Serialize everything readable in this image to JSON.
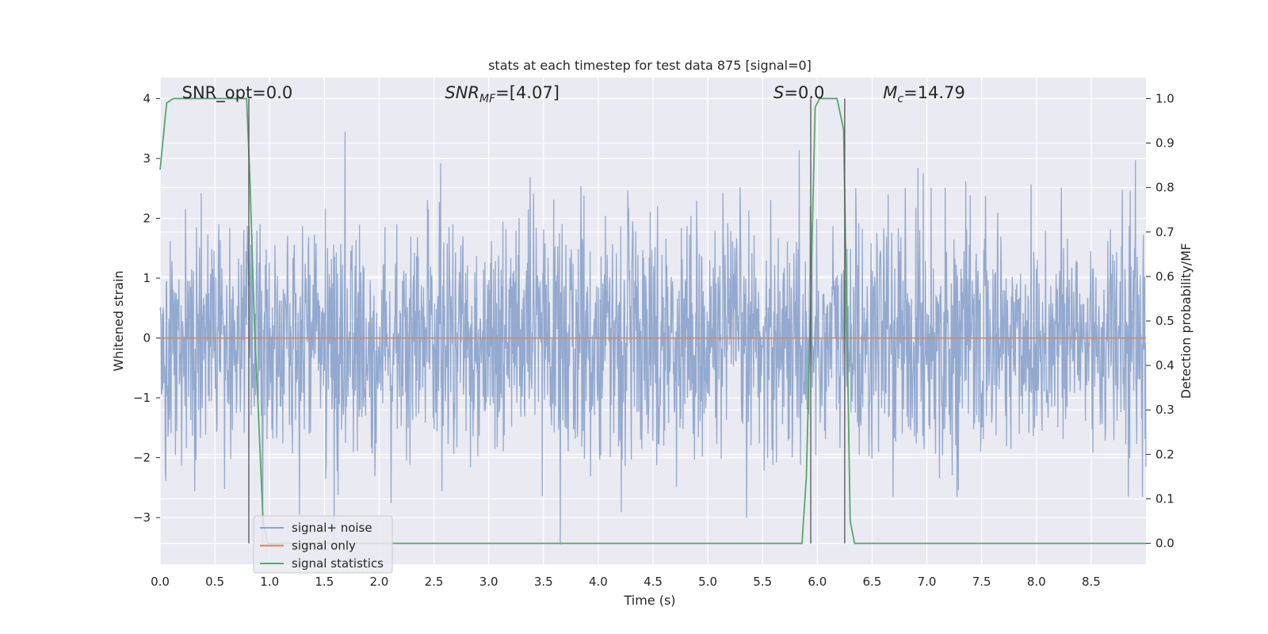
{
  "chart_data": {
    "type": "line",
    "title": "stats at each timestep for test data 875 [signal=0]",
    "xlabel": "Time (s)",
    "ylabel": "Whitened strain",
    "y2label": "Detection probability/MF",
    "xlim": [
      0.0,
      9.0
    ],
    "ylim": [
      -3.78,
      4.35
    ],
    "y2lim": [
      -0.047,
      1.047
    ],
    "x_ticks": [
      "0.0",
      "0.5",
      "1.0",
      "1.5",
      "2.0",
      "2.5",
      "3.0",
      "3.5",
      "4.0",
      "4.5",
      "5.0",
      "5.5",
      "6.0",
      "6.5",
      "7.0",
      "7.5",
      "8.0",
      "8.5"
    ],
    "x_tick_values": [
      0.0,
      0.5,
      1.0,
      1.5,
      2.0,
      2.5,
      3.0,
      3.5,
      4.0,
      4.5,
      5.0,
      5.5,
      6.0,
      6.5,
      7.0,
      7.5,
      8.0,
      8.5
    ],
    "y_ticks": [
      "−3",
      "−2",
      "−1",
      "0",
      "1",
      "2",
      "3",
      "4"
    ],
    "y_tick_values": [
      -3,
      -2,
      -1,
      0,
      1,
      2,
      3,
      4
    ],
    "y2_ticks": [
      "0.0",
      "0.1",
      "0.2",
      "0.3",
      "0.4",
      "0.5",
      "0.6",
      "0.7",
      "0.8",
      "0.9",
      "1.0"
    ],
    "y2_tick_values": [
      0.0,
      0.1,
      0.2,
      0.3,
      0.4,
      0.5,
      0.6,
      0.7,
      0.8,
      0.9,
      1.0
    ],
    "grid": true,
    "legend_position": "lower-left",
    "annotations": [
      {
        "text": "SNR_opt=0.0",
        "x": 0.2
      },
      {
        "text": "SNR_MF=[4.07]",
        "x": 2.6
      },
      {
        "text": "S=0.0",
        "x": 5.6
      },
      {
        "text": "M_c=14.79",
        "x": 6.6
      }
    ],
    "series": [
      {
        "name": "signal+ noise",
        "color": "#8ea5cc",
        "axis": "left",
        "description_samples": "dense noise, roughly gaussian, sample spacing ~0.004 s",
        "amplitude_range": [
          -3.45,
          4.0
        ]
      },
      {
        "name": "signal only",
        "color": "#dd8452",
        "axis": "left",
        "x": [
          0.0,
          9.0
        ],
        "y": [
          0.0,
          0.0
        ]
      },
      {
        "name": "signal statistics",
        "color": "#55a868",
        "axis": "right",
        "x": [
          0.0,
          0.06,
          0.12,
          0.18,
          0.24,
          0.3,
          0.4,
          0.5,
          0.6,
          0.7,
          0.79,
          0.82,
          0.86,
          0.9,
          0.94,
          0.98,
          1.5,
          2.0,
          3.0,
          4.0,
          5.0,
          5.5,
          5.86,
          5.9,
          5.94,
          5.98,
          6.02,
          6.1,
          6.18,
          6.24,
          6.27,
          6.3,
          6.34,
          7.0,
          8.0,
          8.5,
          9.0
        ],
        "y": [
          0.84,
          0.99,
          1.0,
          1.0,
          1.0,
          1.0,
          1.0,
          1.0,
          1.0,
          1.0,
          1.0,
          0.82,
          0.5,
          0.28,
          0.05,
          0.0,
          0.0,
          0.0,
          0.0,
          0.0,
          0.0,
          0.0,
          0.0,
          0.15,
          0.55,
          0.98,
          1.0,
          1.0,
          1.0,
          0.93,
          0.5,
          0.05,
          0.0,
          0.0,
          0.0,
          0.0,
          0.0
        ]
      }
    ],
    "vertical_lines": [
      0.81,
      5.94,
      6.25
    ]
  }
}
